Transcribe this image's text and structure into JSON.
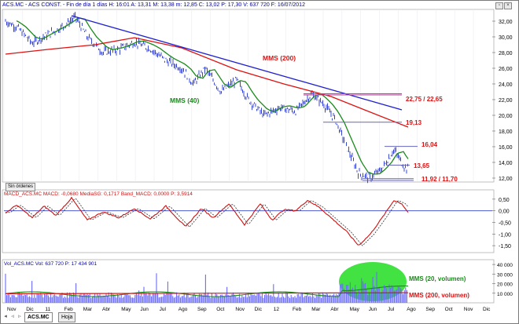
{
  "price_pane": {
    "header": "ACS.MC - ACS CONST. - Fin de día 1 días H: 16:01 A: 13,31 M: 13,38 m: 12,85 C: 13,02 P: 17,30 V: 637 720 F: 16/07/2012",
    "y_ticks": [
      "32,00",
      "30,00",
      "28,00",
      "26,00",
      "24,00",
      "22,00",
      "20,00",
      "18,00",
      "16,00",
      "14,00",
      "12,00"
    ],
    "annotations": {
      "mms200": "MMS (200)",
      "mms40": "MMS (40)",
      "level_2275": "22,75 / 22,65",
      "level_1913": "19,13",
      "level_1604": "16,04",
      "level_1365": "13,65",
      "level_1192": "11,92 / 11,70"
    },
    "button_label": "Sin órdenes"
  },
  "macd_pane": {
    "header": "MACD_ACS.MC  MACD: -0,0680  MediaSG: 0,1717  Band_MACD: 0,0000  P: 3,5914",
    "y_ticks": [
      "0,50",
      "0,00",
      "-0,50",
      "-1,00",
      "-1,50"
    ]
  },
  "volume_pane": {
    "header": "Vol_ACS.MC  Vol: 637 720  P: 17 434 901",
    "y_ticks": [
      "40 000",
      "30 000",
      "20 000",
      "10 000"
    ],
    "annotations": {
      "mms20": "MMS (20, volumen)",
      "mms200v": "MMS (200, volumen)"
    }
  },
  "x_axis": {
    "labels": [
      "Nov",
      "Dic",
      "11",
      "Feb",
      "Mar",
      "Abr",
      "May",
      "Jun",
      "Jul",
      "Ago",
      "Sep",
      "Oct",
      "Nov",
      "Dic",
      "12",
      "Feb",
      "Mar",
      "Abr",
      "May",
      "Jun",
      "Jul",
      "Ago",
      "Sep",
      "Oct",
      "Nov",
      "Dic"
    ]
  },
  "tabs": {
    "active": "ACS.MC",
    "other": "Hoja"
  },
  "colors": {
    "price": "#2233cc",
    "mms40": "#1a8a1a",
    "mms200": "#dd1111",
    "trendline": "#2020d0",
    "macd": "#cc1111",
    "signal": "#333333",
    "volume": "#6a6aff",
    "highlight": "#22dd22"
  }
}
